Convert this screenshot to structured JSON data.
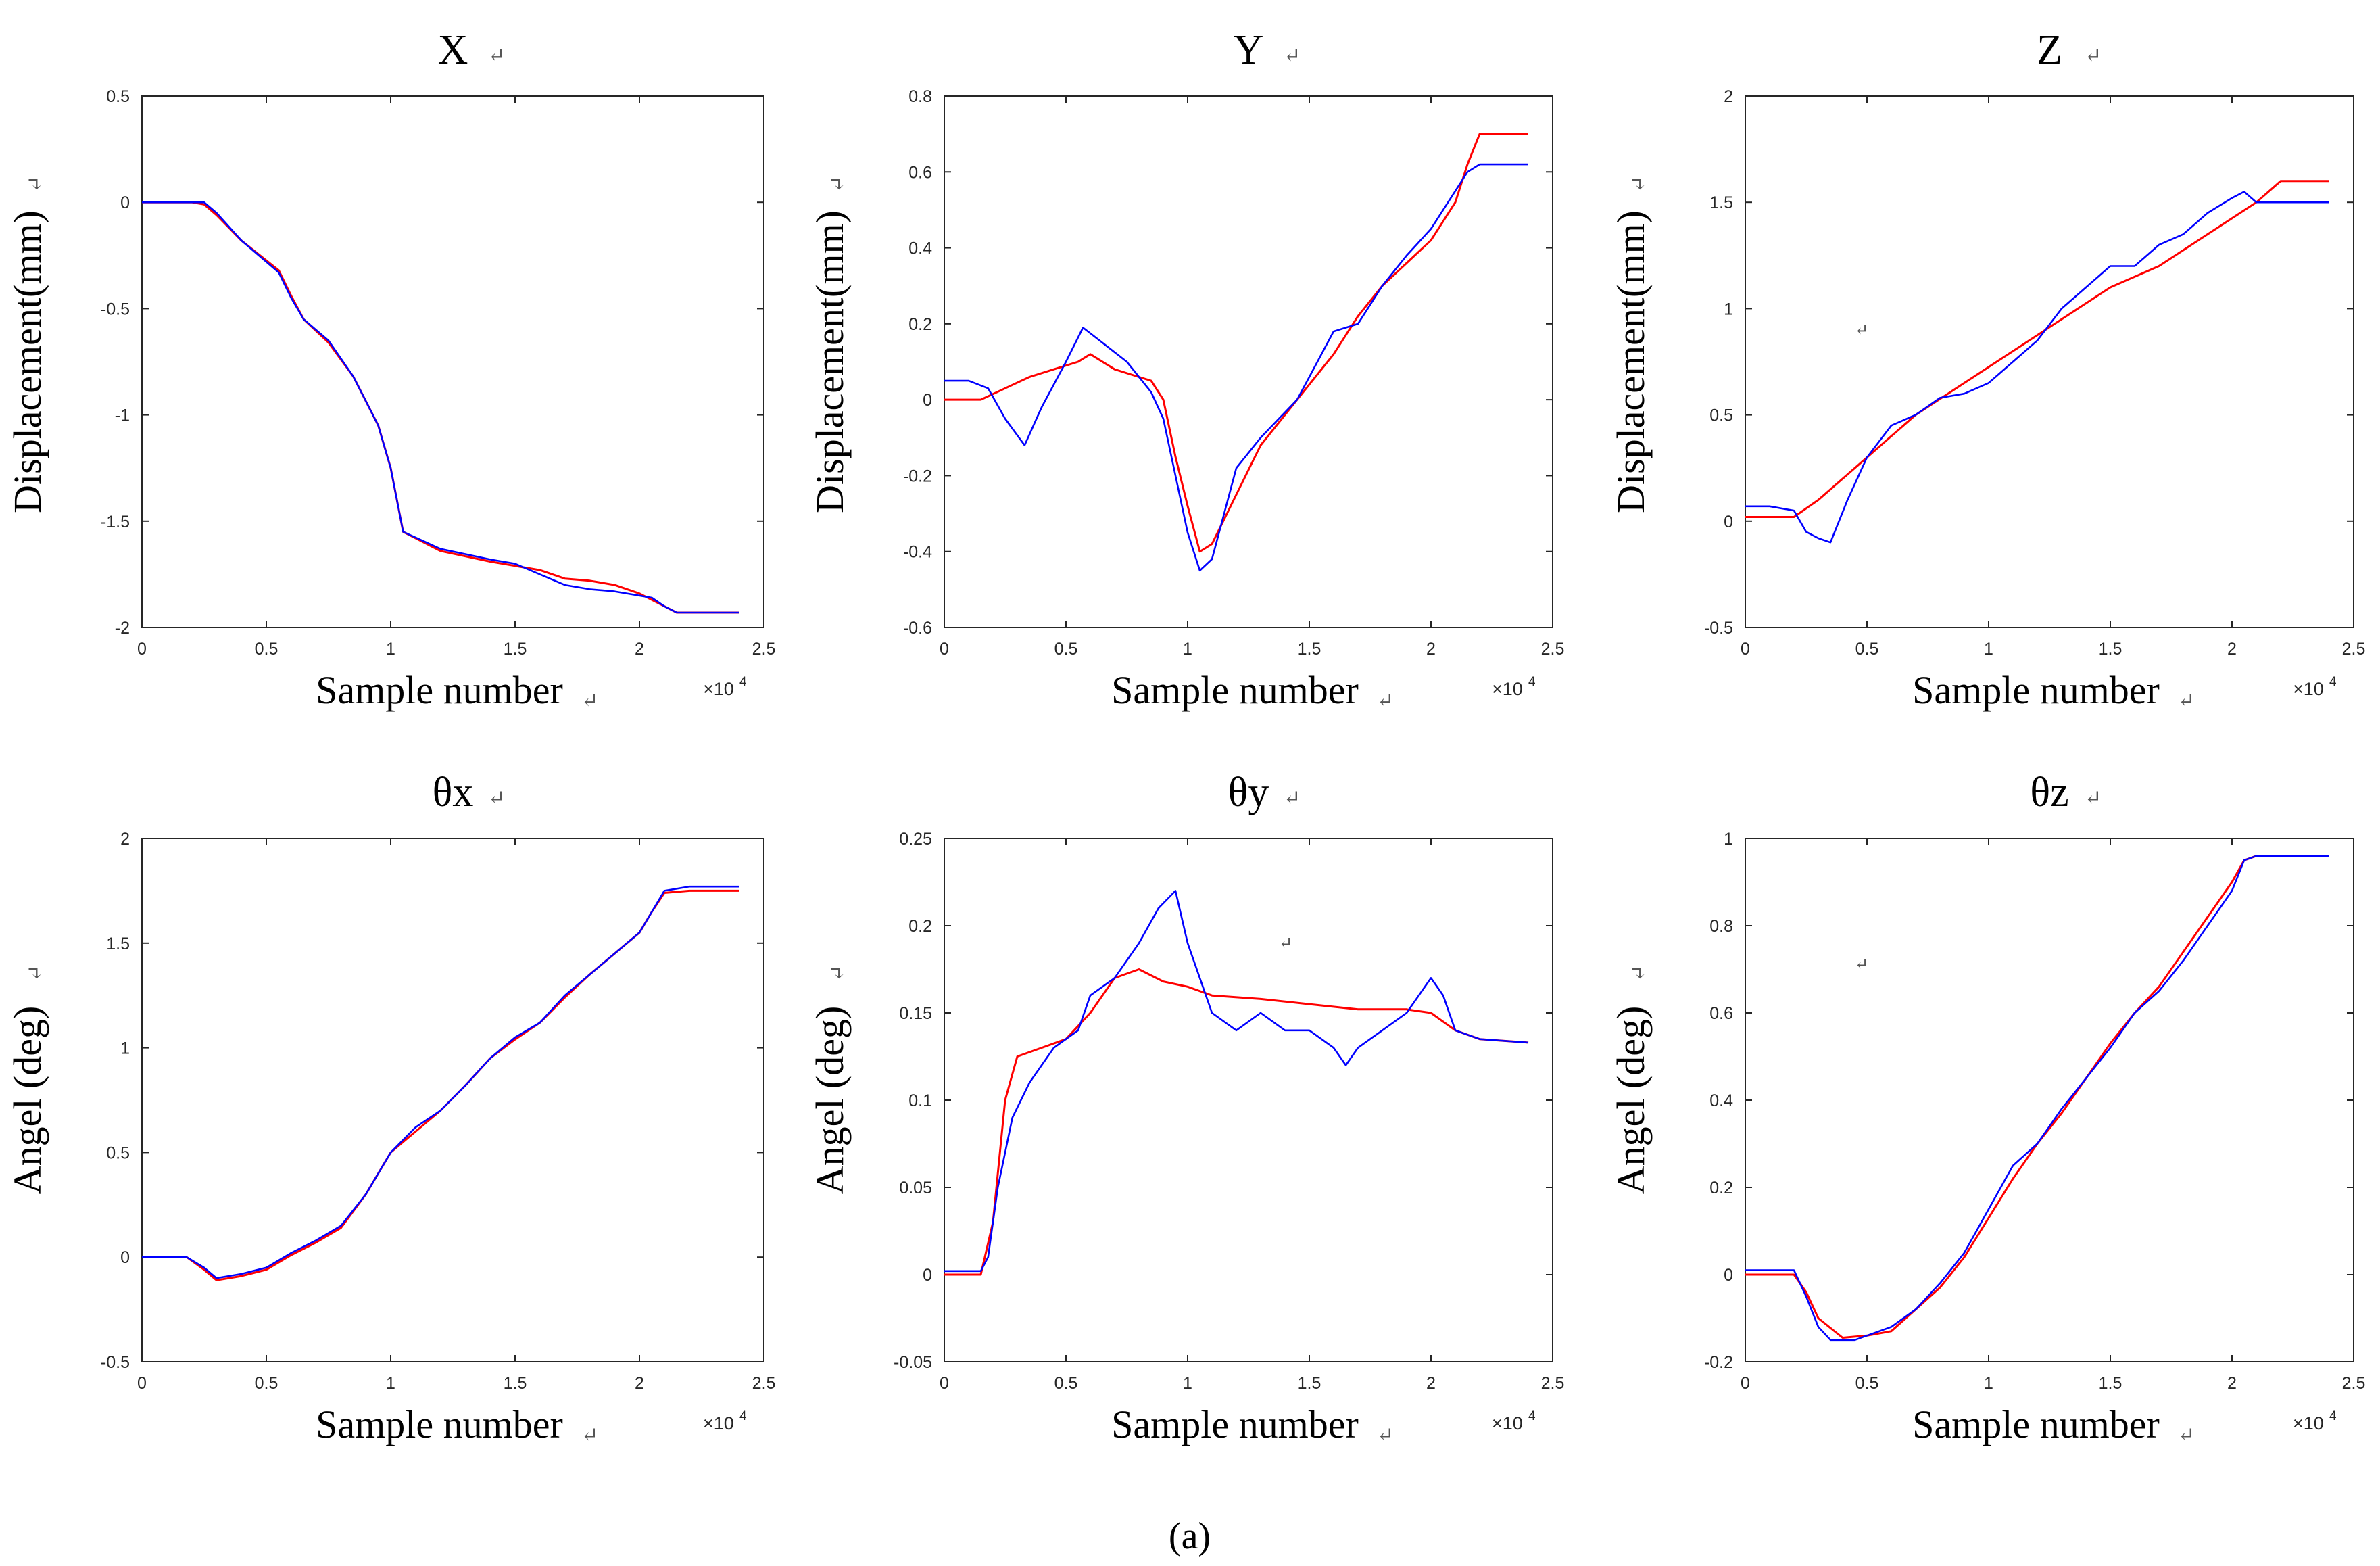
{
  "caption": "(a)",
  "return_mark": "↵",
  "colors": {
    "actual": "#0000ff",
    "model": "#ff0000",
    "axis": "#262626"
  },
  "chart_data": [
    {
      "type": "line",
      "title": "X",
      "xlabel": "Sample number",
      "ylabel": "Displacement(mm)",
      "x_exponent_label": "×10",
      "x_exponent_power": "4",
      "xlim": [
        0,
        2.5
      ],
      "ylim": [
        -2,
        0.5
      ],
      "xticks": [
        0,
        0.5,
        1,
        1.5,
        2,
        2.5
      ],
      "xtick_labels": [
        "0",
        "0.5",
        "1",
        "1.5",
        "2",
        "2.5"
      ],
      "yticks": [
        -2,
        -1.5,
        -1,
        -0.5,
        0,
        0.5
      ],
      "ytick_labels": [
        "-2",
        "-1.5",
        "-1",
        "-0.5",
        "0",
        "0.5"
      ],
      "series": [
        {
          "name": "blue",
          "color": "#0000ff",
          "x": [
            0,
            0.2,
            0.25,
            0.3,
            0.4,
            0.55,
            0.6,
            0.65,
            0.75,
            0.85,
            0.95,
            1.0,
            1.05,
            1.2,
            1.4,
            1.5,
            1.6,
            1.7,
            1.8,
            1.9,
            2.0,
            2.05,
            2.1,
            2.15,
            2.2,
            2.4
          ],
          "y": [
            0,
            0,
            0,
            -0.05,
            -0.18,
            -0.33,
            -0.45,
            -0.55,
            -0.65,
            -0.82,
            -1.05,
            -1.25,
            -1.55,
            -1.63,
            -1.68,
            -1.7,
            -1.75,
            -1.8,
            -1.82,
            -1.83,
            -1.85,
            -1.86,
            -1.9,
            -1.93,
            -1.93,
            -1.93
          ]
        },
        {
          "name": "red",
          "color": "#ff0000",
          "x": [
            0,
            0.2,
            0.25,
            0.3,
            0.4,
            0.55,
            0.6,
            0.65,
            0.75,
            0.85,
            0.95,
            1.0,
            1.05,
            1.2,
            1.4,
            1.5,
            1.6,
            1.7,
            1.8,
            1.9,
            2.0,
            2.1,
            2.15,
            2.2,
            2.4
          ],
          "y": [
            0,
            0,
            -0.01,
            -0.06,
            -0.18,
            -0.32,
            -0.44,
            -0.55,
            -0.66,
            -0.82,
            -1.05,
            -1.25,
            -1.55,
            -1.64,
            -1.69,
            -1.71,
            -1.73,
            -1.77,
            -1.78,
            -1.8,
            -1.84,
            -1.9,
            -1.93,
            -1.93,
            -1.93
          ]
        }
      ]
    },
    {
      "type": "line",
      "title": "Y",
      "xlabel": "Sample number",
      "ylabel": "Displacement(mm)",
      "x_exponent_label": "×10",
      "x_exponent_power": "4",
      "xlim": [
        0,
        2.5
      ],
      "ylim": [
        -0.6,
        0.8
      ],
      "xticks": [
        0,
        0.5,
        1,
        1.5,
        2,
        2.5
      ],
      "xtick_labels": [
        "0",
        "0.5",
        "1",
        "1.5",
        "2",
        "2.5"
      ],
      "yticks": [
        -0.6,
        -0.4,
        -0.2,
        0,
        0.2,
        0.4,
        0.6,
        0.8
      ],
      "ytick_labels": [
        "-0.6",
        "-0.4",
        "-0.2",
        "0",
        "0.2",
        "0.4",
        "0.6",
        "0.8"
      ],
      "series": [
        {
          "name": "blue",
          "color": "#0000ff",
          "x": [
            0,
            0.1,
            0.18,
            0.25,
            0.33,
            0.4,
            0.5,
            0.57,
            0.65,
            0.75,
            0.85,
            0.9,
            0.95,
            1.0,
            1.05,
            1.1,
            1.15,
            1.2,
            1.3,
            1.45,
            1.6,
            1.7,
            1.8,
            1.9,
            2.0,
            2.05,
            2.1,
            2.15,
            2.2,
            2.3,
            2.4
          ],
          "y": [
            0.05,
            0.05,
            0.03,
            -0.05,
            -0.12,
            -0.02,
            0.1,
            0.19,
            0.15,
            0.1,
            0.02,
            -0.05,
            -0.2,
            -0.35,
            -0.45,
            -0.42,
            -0.3,
            -0.18,
            -0.1,
            0.0,
            0.18,
            0.2,
            0.3,
            0.38,
            0.45,
            0.5,
            0.55,
            0.6,
            0.62,
            0.62,
            0.62
          ]
        },
        {
          "name": "red",
          "color": "#ff0000",
          "x": [
            0,
            0.15,
            0.25,
            0.35,
            0.45,
            0.55,
            0.6,
            0.7,
            0.8,
            0.85,
            0.9,
            0.95,
            1.0,
            1.05,
            1.1,
            1.2,
            1.3,
            1.45,
            1.6,
            1.7,
            1.8,
            1.9,
            2.0,
            2.1,
            2.15,
            2.2,
            2.4
          ],
          "y": [
            0,
            0,
            0.03,
            0.06,
            0.08,
            0.1,
            0.12,
            0.08,
            0.06,
            0.05,
            0.0,
            -0.15,
            -0.28,
            -0.4,
            -0.38,
            -0.25,
            -0.12,
            0.0,
            0.12,
            0.22,
            0.3,
            0.36,
            0.42,
            0.52,
            0.62,
            0.7,
            0.7
          ]
        }
      ]
    },
    {
      "type": "line",
      "title": "Z",
      "xlabel": "Sample number",
      "ylabel": "Displacement(mm)",
      "x_exponent_label": "×10",
      "x_exponent_power": "4",
      "xlim": [
        0,
        2.5
      ],
      "ylim": [
        -0.5,
        2
      ],
      "xticks": [
        0,
        0.5,
        1,
        1.5,
        2,
        2.5
      ],
      "xtick_labels": [
        "0",
        "0.5",
        "1",
        "1.5",
        "2",
        "2.5"
      ],
      "yticks": [
        -0.5,
        0,
        0.5,
        1,
        1.5,
        2
      ],
      "ytick_labels": [
        "-0.5",
        "0",
        "0.5",
        "1",
        "1.5",
        "2"
      ],
      "series": [
        {
          "name": "blue",
          "color": "#0000ff",
          "x": [
            0,
            0.1,
            0.2,
            0.25,
            0.3,
            0.35,
            0.42,
            0.5,
            0.6,
            0.7,
            0.8,
            0.9,
            1.0,
            1.1,
            1.2,
            1.3,
            1.4,
            1.5,
            1.6,
            1.7,
            1.8,
            1.9,
            2.0,
            2.05,
            2.1,
            2.2,
            2.4
          ],
          "y": [
            0.07,
            0.07,
            0.05,
            -0.05,
            -0.08,
            -0.1,
            0.1,
            0.3,
            0.45,
            0.5,
            0.58,
            0.6,
            0.65,
            0.75,
            0.85,
            1.0,
            1.1,
            1.2,
            1.2,
            1.3,
            1.35,
            1.45,
            1.52,
            1.55,
            1.5,
            1.5,
            1.5
          ]
        },
        {
          "name": "red",
          "color": "#ff0000",
          "x": [
            0,
            0.2,
            0.3,
            0.5,
            0.7,
            0.9,
            1.1,
            1.3,
            1.5,
            1.7,
            1.9,
            2.1,
            2.2,
            2.4
          ],
          "y": [
            0.02,
            0.02,
            0.1,
            0.3,
            0.5,
            0.65,
            0.8,
            0.95,
            1.1,
            1.2,
            1.35,
            1.5,
            1.6,
            1.6
          ]
        }
      ]
    },
    {
      "type": "line",
      "title": "θx",
      "xlabel": "Sample number",
      "ylabel": "Angel (deg)",
      "x_exponent_label": "×10",
      "x_exponent_power": "4",
      "xlim": [
        0,
        2.5
      ],
      "ylim": [
        -0.5,
        2
      ],
      "xticks": [
        0,
        0.5,
        1,
        1.5,
        2,
        2.5
      ],
      "xtick_labels": [
        "0",
        "0.5",
        "1",
        "1.5",
        "2",
        "2.5"
      ],
      "yticks": [
        -0.5,
        0,
        0.5,
        1,
        1.5,
        2
      ],
      "ytick_labels": [
        "-0.5",
        "0",
        "0.5",
        "1",
        "1.5",
        "2"
      ],
      "series": [
        {
          "name": "blue",
          "color": "#0000ff",
          "x": [
            0,
            0.18,
            0.25,
            0.3,
            0.4,
            0.5,
            0.6,
            0.7,
            0.8,
            0.9,
            1.0,
            1.1,
            1.2,
            1.3,
            1.4,
            1.5,
            1.6,
            1.7,
            1.8,
            1.9,
            2.0,
            2.05,
            2.1,
            2.2,
            2.4
          ],
          "y": [
            0,
            0,
            -0.05,
            -0.1,
            -0.08,
            -0.05,
            0.02,
            0.08,
            0.15,
            0.3,
            0.5,
            0.62,
            0.7,
            0.82,
            0.95,
            1.05,
            1.12,
            1.25,
            1.35,
            1.45,
            1.55,
            1.65,
            1.75,
            1.77,
            1.77
          ]
        },
        {
          "name": "red",
          "color": "#ff0000",
          "x": [
            0,
            0.18,
            0.25,
            0.3,
            0.4,
            0.5,
            0.6,
            0.7,
            0.8,
            0.9,
            1.0,
            1.1,
            1.2,
            1.3,
            1.4,
            1.5,
            1.6,
            1.7,
            1.8,
            1.9,
            2.0,
            2.05,
            2.1,
            2.2,
            2.4
          ],
          "y": [
            0,
            0,
            -0.06,
            -0.11,
            -0.09,
            -0.06,
            0.01,
            0.07,
            0.14,
            0.3,
            0.5,
            0.6,
            0.7,
            0.82,
            0.95,
            1.04,
            1.12,
            1.24,
            1.35,
            1.45,
            1.55,
            1.65,
            1.74,
            1.75,
            1.75
          ]
        }
      ]
    },
    {
      "type": "line",
      "title": "θy",
      "xlabel": "Sample number",
      "ylabel": "Angel (deg)",
      "x_exponent_label": "×10",
      "x_exponent_power": "4",
      "xlim": [
        0,
        2.5
      ],
      "ylim": [
        -0.05,
        0.25
      ],
      "xticks": [
        0,
        0.5,
        1,
        1.5,
        2,
        2.5
      ],
      "xtick_labels": [
        "0",
        "0.5",
        "1",
        "1.5",
        "2",
        "2.5"
      ],
      "yticks": [
        -0.05,
        0,
        0.05,
        0.1,
        0.15,
        0.2,
        0.25
      ],
      "ytick_labels": [
        "-0.05",
        "0",
        "0.05",
        "0.1",
        "0.15",
        "0.2",
        "0.25"
      ],
      "series": [
        {
          "name": "blue",
          "color": "#0000ff",
          "x": [
            0,
            0.15,
            0.18,
            0.22,
            0.28,
            0.35,
            0.45,
            0.55,
            0.6,
            0.7,
            0.8,
            0.88,
            0.95,
            1.0,
            1.05,
            1.1,
            1.2,
            1.3,
            1.4,
            1.5,
            1.6,
            1.65,
            1.7,
            1.8,
            1.9,
            2.0,
            2.05,
            2.1,
            2.2,
            2.4
          ],
          "y": [
            0.002,
            0.002,
            0.01,
            0.05,
            0.09,
            0.11,
            0.13,
            0.14,
            0.16,
            0.17,
            0.19,
            0.21,
            0.22,
            0.19,
            0.17,
            0.15,
            0.14,
            0.15,
            0.14,
            0.14,
            0.13,
            0.12,
            0.13,
            0.14,
            0.15,
            0.17,
            0.16,
            0.14,
            0.135,
            0.133
          ]
        },
        {
          "name": "red",
          "color": "#ff0000",
          "x": [
            0,
            0.15,
            0.2,
            0.25,
            0.3,
            0.4,
            0.5,
            0.6,
            0.7,
            0.8,
            0.9,
            1.0,
            1.1,
            1.3,
            1.5,
            1.7,
            1.9,
            2.0,
            2.1,
            2.2,
            2.4
          ],
          "y": [
            0,
            0,
            0.03,
            0.1,
            0.125,
            0.13,
            0.135,
            0.15,
            0.17,
            0.175,
            0.168,
            0.165,
            0.16,
            0.158,
            0.155,
            0.152,
            0.152,
            0.15,
            0.14,
            0.135,
            0.133
          ]
        }
      ]
    },
    {
      "type": "line",
      "title": "θz",
      "xlabel": "Sample number",
      "ylabel": "Angel (deg)",
      "x_exponent_label": "×10",
      "x_exponent_power": "4",
      "xlim": [
        0,
        2.5
      ],
      "ylim": [
        -0.2,
        1
      ],
      "xticks": [
        0,
        0.5,
        1,
        1.5,
        2,
        2.5
      ],
      "xtick_labels": [
        "0",
        "0.5",
        "1",
        "1.5",
        "2",
        "2.5"
      ],
      "yticks": [
        -0.2,
        0,
        0.2,
        0.4,
        0.6,
        0.8,
        1
      ],
      "ytick_labels": [
        "-0.2",
        "0",
        "0.2",
        "0.4",
        "0.6",
        "0.8",
        "1"
      ],
      "series": [
        {
          "name": "blue",
          "color": "#0000ff",
          "x": [
            0,
            0.2,
            0.25,
            0.3,
            0.35,
            0.45,
            0.5,
            0.6,
            0.7,
            0.8,
            0.9,
            1.0,
            1.1,
            1.2,
            1.3,
            1.4,
            1.5,
            1.6,
            1.7,
            1.8,
            1.9,
            2.0,
            2.05,
            2.1,
            2.4
          ],
          "y": [
            0.01,
            0.01,
            -0.05,
            -0.12,
            -0.15,
            -0.15,
            -0.14,
            -0.12,
            -0.08,
            -0.02,
            0.05,
            0.15,
            0.25,
            0.3,
            0.38,
            0.45,
            0.52,
            0.6,
            0.65,
            0.72,
            0.8,
            0.88,
            0.95,
            0.96,
            0.96
          ]
        },
        {
          "name": "red",
          "color": "#ff0000",
          "x": [
            0,
            0.2,
            0.25,
            0.3,
            0.4,
            0.5,
            0.6,
            0.7,
            0.8,
            0.9,
            1.0,
            1.1,
            1.2,
            1.3,
            1.4,
            1.5,
            1.6,
            1.7,
            1.8,
            1.9,
            2.0,
            2.05,
            2.1,
            2.4
          ],
          "y": [
            0,
            0,
            -0.04,
            -0.1,
            -0.145,
            -0.14,
            -0.13,
            -0.08,
            -0.03,
            0.04,
            0.13,
            0.22,
            0.3,
            0.37,
            0.45,
            0.53,
            0.6,
            0.66,
            0.74,
            0.82,
            0.9,
            0.95,
            0.96,
            0.96
          ]
        }
      ]
    }
  ]
}
